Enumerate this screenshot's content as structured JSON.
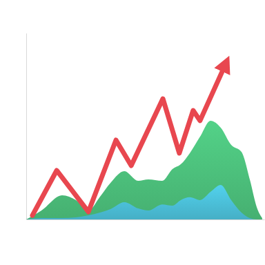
{
  "chart_data": {
    "type": "area",
    "tick_labels": false,
    "xlim": [
      0,
      100
    ],
    "ylim": [
      0,
      100
    ],
    "x": [
      0,
      6.4,
      15.1,
      20.9,
      26.1,
      31.0,
      35.4,
      41.2,
      47.0,
      51.3,
      57.1,
      61.4,
      64.9,
      68.7,
      73.0,
      77.4,
      81.7,
      86.1,
      90.4,
      93.9,
      96.8,
      99.1
    ],
    "series": [
      {
        "type": "area",
        "color": "#4cc07c",
        "values": [
          0,
          4.8,
          13.0,
          10.4,
          4.8,
          12.2,
          19.6,
          25.9,
          20.7,
          21.5,
          20.7,
          27.0,
          29.6,
          35.6,
          44.4,
          53.0,
          49.3,
          40.0,
          36.3,
          21.5,
          6.7,
          0.7
        ]
      },
      {
        "type": "area",
        "color": "#4bbfd8",
        "values": [
          0,
          0.7,
          0.7,
          1.1,
          2.2,
          3.7,
          5.6,
          9.3,
          5.9,
          4.8,
          8.1,
          7.4,
          10.4,
          11.9,
          10.4,
          14.8,
          18.5,
          10.4,
          3.7,
          0.7,
          0,
          0
        ]
      },
      {
        "type": "line",
        "color": "#e8474f",
        "marker": "arrow",
        "x": [
          2.6,
          12.8,
          26.1,
          37.7,
          44.1,
          57.4,
          64.3,
          70.1,
          73.0,
          83.2
        ],
        "values": [
          2.2,
          26.3,
          4.1,
          42.6,
          28.9,
          64.8,
          35.6,
          58.5,
          53.0,
          81.9
        ]
      }
    ]
  }
}
